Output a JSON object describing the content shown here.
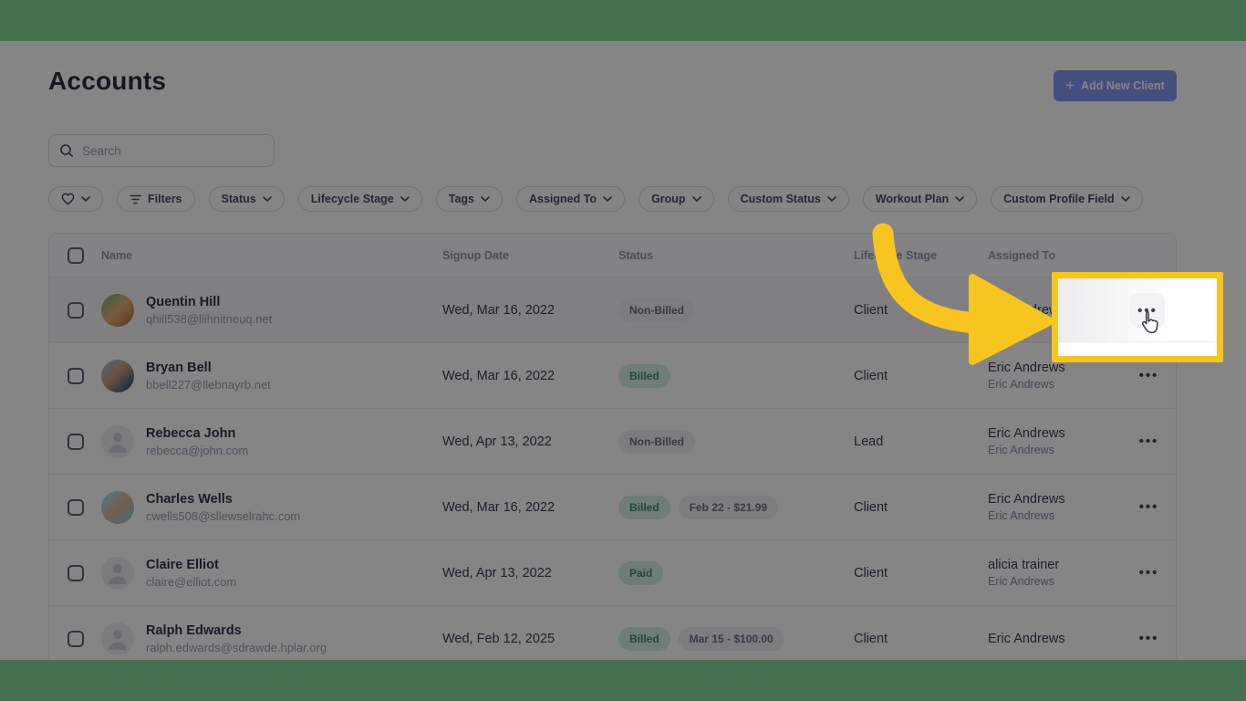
{
  "page": {
    "title": "Accounts"
  },
  "toolbar": {
    "add_new_client_label": "Add New Client",
    "plus_icon": "+"
  },
  "search": {
    "placeholder": "Search"
  },
  "filter_bar": {
    "favorites_chip": {
      "icon": "heart-icon",
      "has_chevron": true
    },
    "chips": [
      {
        "label": "Filters",
        "icon": "filter-lines-icon",
        "has_chevron": false
      },
      {
        "label": "Status",
        "has_chevron": true
      },
      {
        "label": "Lifecycle Stage",
        "has_chevron": true
      },
      {
        "label": "Tags",
        "has_chevron": true
      },
      {
        "label": "Assigned To",
        "has_chevron": true
      },
      {
        "label": "Group",
        "has_chevron": true
      },
      {
        "label": "Custom Status",
        "has_chevron": true
      },
      {
        "label": "Workout Plan",
        "has_chevron": true
      },
      {
        "label": "Custom Profile Field",
        "has_chevron": true
      }
    ]
  },
  "table": {
    "columns": {
      "name": "Name",
      "signup_date": "Signup Date",
      "status": "Status",
      "lifecycle_stage": "Lifecycle Stage",
      "assigned_to": "Assigned To"
    },
    "row_actions_icon": "•••",
    "rows": [
      {
        "name": "Quentin Hill",
        "email": "qhill538@llihnitneuq.net",
        "avatar": "photo-quentin",
        "signup_date": "Wed, Mar 16, 2022",
        "status": "Non-Billed",
        "status_type": "gray",
        "billing_note": "",
        "lifecycle": "Client",
        "assigned_to": "Eric Andrews",
        "assigned_secondary": "",
        "highlighted": true
      },
      {
        "name": "Bryan Bell",
        "email": "bbell227@llebnayrb.net",
        "avatar": "photo-bryan",
        "signup_date": "Wed, Mar 16, 2022",
        "status": "Billed",
        "status_type": "green",
        "billing_note": "",
        "lifecycle": "Client",
        "assigned_to": "Eric Andrews",
        "assigned_secondary": "Eric Andrews",
        "highlighted": false
      },
      {
        "name": "Rebecca John",
        "email": "rebecca@john.com",
        "avatar": "placeholder",
        "signup_date": "Wed, Apr 13, 2022",
        "status": "Non-Billed",
        "status_type": "gray",
        "billing_note": "",
        "lifecycle": "Lead",
        "assigned_to": "Eric Andrews",
        "assigned_secondary": "Eric Andrews",
        "highlighted": false
      },
      {
        "name": "Charles Wells",
        "email": "cwells508@sllewselrahc.com",
        "avatar": "photo-charles",
        "signup_date": "Wed, Mar 16, 2022",
        "status": "Billed",
        "status_type": "green",
        "billing_note": "Feb 22 - $21.99",
        "lifecycle": "Client",
        "assigned_to": "Eric Andrews",
        "assigned_secondary": "Eric Andrews",
        "highlighted": false
      },
      {
        "name": "Claire Elliot",
        "email": "claire@elliot.com",
        "avatar": "placeholder",
        "signup_date": "Wed, Apr 13, 2022",
        "status": "Paid",
        "status_type": "green",
        "billing_note": "",
        "lifecycle": "Client",
        "assigned_to": "alicia trainer",
        "assigned_secondary": "Eric Andrews",
        "highlighted": false
      },
      {
        "name": "Ralph Edwards",
        "email": "ralph.edwards@sdrawde.hplar.org",
        "avatar": "placeholder",
        "signup_date": "Wed, Feb 12, 2025",
        "status": "Billed",
        "status_type": "green",
        "billing_note": "Mar 15 - $100.00",
        "lifecycle": "Client",
        "assigned_to": "Eric Andrews",
        "assigned_secondary": "",
        "highlighted": false
      }
    ]
  },
  "annotation": {
    "arrow_color": "#F8C41F",
    "highlight_border_color": "#F6C51F",
    "highlighted_element": "row-actions-button",
    "cursor": "pointer-hand",
    "dots_icon": "•••"
  },
  "colors": {
    "letterbox_green": "#47714E",
    "accent_blue": "#7B93F0",
    "badge_green_bg": "#D2EFE1",
    "badge_green_text": "#35836A",
    "badge_gray_bg": "#ECEEF0",
    "badge_gray_text": "#636A75"
  }
}
